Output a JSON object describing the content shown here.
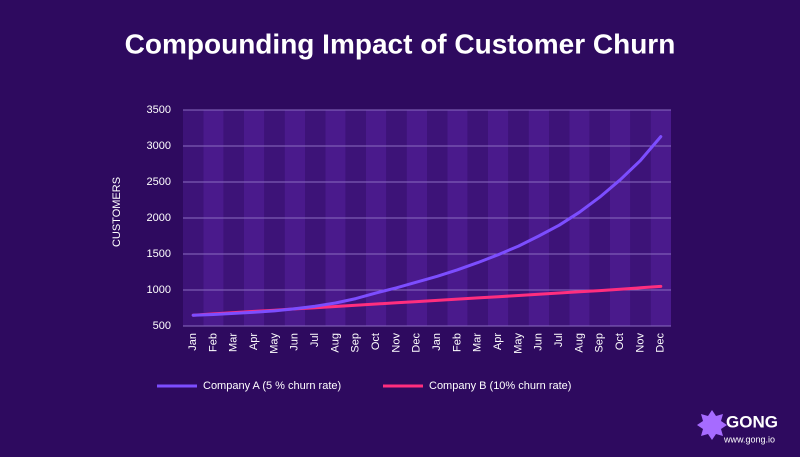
{
  "chart_data": {
    "type": "line",
    "title": "Compounding Impact of Customer Churn",
    "y_label": "CUSTOMERS",
    "categories": [
      "Jan",
      "Feb",
      "Mar",
      "Apr",
      "May",
      "Jun",
      "Jul",
      "Aug",
      "Sep",
      "Oct",
      "Nov",
      "Dec",
      "Jan",
      "Feb",
      "Mar",
      "Apr",
      "May",
      "Jun",
      "Jul",
      "Aug",
      "Sep",
      "Oct",
      "Nov",
      "Dec"
    ],
    "series": [
      {
        "name": "Company A (5 % churn rate)",
        "color": "#7c4dff",
        "values": [
          650,
          660,
          675,
          690,
          710,
          740,
          775,
          820,
          880,
          960,
          1030,
          1110,
          1190,
          1280,
          1380,
          1490,
          1610,
          1750,
          1900,
          2080,
          2290,
          2530,
          2800,
          3130
        ]
      },
      {
        "name": "Company B (10% churn rate)",
        "color": "#ff2e7e",
        "values": [
          650,
          668,
          686,
          703,
          720,
          737,
          754,
          771,
          788,
          805,
          822,
          839,
          856,
          873,
          890,
          907,
          924,
          941,
          958,
          975,
          992,
          1010,
          1030,
          1050
        ]
      }
    ],
    "ylim": [
      500,
      3500
    ],
    "yticks": [
      500,
      1000,
      1500,
      2000,
      2500,
      3000,
      3500
    ],
    "grid": true
  },
  "brand": {
    "name": "GONG",
    "url": "www.gong.io"
  }
}
